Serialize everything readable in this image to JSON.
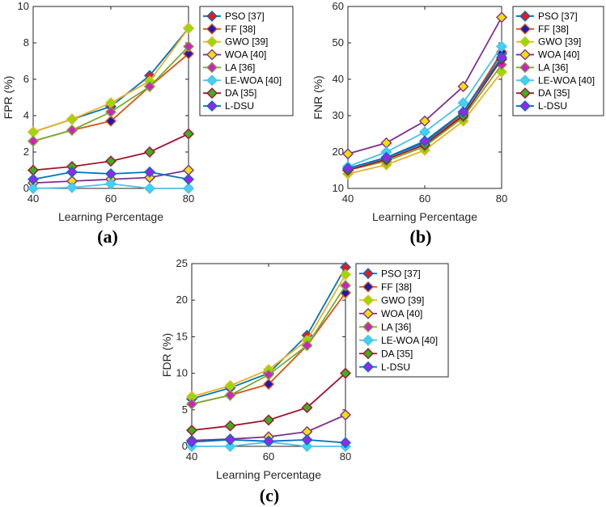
{
  "series_styles": [
    {
      "name": "PSO [37]",
      "line": "#0072BD",
      "face": "#E81A1A"
    },
    {
      "name": "FF [38]",
      "line": "#D95319",
      "face": "#1A1AB4"
    },
    {
      "name": "GWO [39]",
      "line": "#EDB120",
      "face": "#8CE000"
    },
    {
      "name": "WOA [40]",
      "line": "#7E2F8E",
      "face": "#F2E000"
    },
    {
      "name": "LA [36]",
      "line": "#77AC30",
      "face": "#D61CC8"
    },
    {
      "name": "LE-WOA [40]",
      "line": "#4DBEEE",
      "face": "#3FD3F2"
    },
    {
      "name": "DA [35]",
      "line": "#A2142F",
      "face": "#3CB01E"
    },
    {
      "name": "L-DSU",
      "line": "#0072BD",
      "face": "#A020F0"
    }
  ],
  "chart_data": [
    {
      "type": "line",
      "panel_label": "(a)",
      "xlabel": "Learning Percentage",
      "ylabel": "FPR (%)",
      "x": [
        40,
        50,
        60,
        70,
        80
      ],
      "xlim": [
        40,
        80
      ],
      "ylim": [
        0,
        10
      ],
      "xticks": [
        "40",
        "60",
        "80"
      ],
      "yticks": [
        "0",
        "2",
        "4",
        "6",
        "8",
        "10"
      ],
      "legend_position": "outside-right",
      "series": [
        {
          "name": "PSO [37]",
          "values": [
            3.1,
            3.8,
            4.5,
            6.2,
            8.8
          ]
        },
        {
          "name": "FF [38]",
          "values": [
            2.6,
            3.2,
            3.7,
            5.6,
            7.4
          ]
        },
        {
          "name": "GWO [39]",
          "values": [
            3.1,
            3.8,
            4.7,
            5.9,
            8.8
          ]
        },
        {
          "name": "WOA [40]",
          "values": [
            0.3,
            0.4,
            0.5,
            0.6,
            1.0
          ]
        },
        {
          "name": "LA [36]",
          "values": [
            2.6,
            3.2,
            4.2,
            5.6,
            7.8
          ]
        },
        {
          "name": "LE-WOA [40]",
          "values": [
            0.0,
            0.05,
            0.25,
            0.0,
            0.0
          ]
        },
        {
          "name": "DA [35]",
          "values": [
            1.0,
            1.2,
            1.5,
            2.0,
            3.0
          ]
        },
        {
          "name": "L-DSU",
          "values": [
            0.5,
            0.9,
            0.8,
            0.9,
            0.5
          ]
        }
      ]
    },
    {
      "type": "line",
      "panel_label": "(b)",
      "xlabel": "Learning Percentage",
      "ylabel": "FNR (%)",
      "x": [
        40,
        50,
        60,
        70,
        80
      ],
      "xlim": [
        40,
        80
      ],
      "ylim": [
        10,
        60
      ],
      "xticks": [
        "40",
        "60",
        "80"
      ],
      "yticks": [
        "10",
        "20",
        "30",
        "40",
        "50",
        "60"
      ],
      "legend_position": "outside-right",
      "series": [
        {
          "name": "PSO [37]",
          "values": [
            15.5,
            18.5,
            22.5,
            31.0,
            47.0
          ]
        },
        {
          "name": "FF [38]",
          "values": [
            15.0,
            18.0,
            22.0,
            30.5,
            47.5
          ]
        },
        {
          "name": "GWO [39]",
          "values": [
            14.0,
            16.5,
            20.5,
            28.5,
            42.0
          ]
        },
        {
          "name": "WOA [40]",
          "values": [
            19.5,
            22.5,
            28.5,
            38.0,
            57.0
          ]
        },
        {
          "name": "LA [36]",
          "values": [
            15.0,
            17.5,
            21.5,
            29.5,
            44.0
          ]
        },
        {
          "name": "LE-WOA [40]",
          "values": [
            16.0,
            20.0,
            25.5,
            33.5,
            49.0
          ]
        },
        {
          "name": "DA [35]",
          "values": [
            15.0,
            18.0,
            22.0,
            30.0,
            45.5
          ]
        },
        {
          "name": "L-DSU",
          "values": [
            15.5,
            18.5,
            23.0,
            31.0,
            46.0
          ]
        }
      ]
    },
    {
      "type": "line",
      "panel_label": "(c)",
      "xlabel": "Learning Percentage",
      "ylabel": "FDR (%)",
      "x": [
        40,
        50,
        60,
        70,
        80
      ],
      "xlim": [
        40,
        80
      ],
      "ylim": [
        0,
        25
      ],
      "xticks": [
        "40",
        "60",
        "80"
      ],
      "yticks": [
        "0",
        "5",
        "10",
        "15",
        "20",
        "25"
      ],
      "legend_position": "outside-right",
      "series": [
        {
          "name": "PSO [37]",
          "values": [
            6.5,
            8.0,
            10.0,
            15.2,
            24.5
          ]
        },
        {
          "name": "FF [38]",
          "values": [
            5.8,
            7.0,
            8.5,
            13.8,
            21.0
          ]
        },
        {
          "name": "GWO [39]",
          "values": [
            6.8,
            8.3,
            10.5,
            14.5,
            23.5
          ]
        },
        {
          "name": "WOA [40]",
          "values": [
            0.8,
            1.0,
            1.3,
            2.0,
            4.3
          ]
        },
        {
          "name": "LA [36]",
          "values": [
            5.8,
            7.0,
            9.8,
            13.8,
            22.0
          ]
        },
        {
          "name": "LE-WOA [40]",
          "values": [
            0.0,
            0.0,
            0.6,
            0.0,
            0.0
          ]
        },
        {
          "name": "DA [35]",
          "values": [
            2.2,
            2.8,
            3.6,
            5.3,
            10.0
          ]
        },
        {
          "name": "L-DSU",
          "values": [
            0.6,
            0.9,
            0.7,
            0.9,
            0.5
          ]
        }
      ]
    }
  ]
}
